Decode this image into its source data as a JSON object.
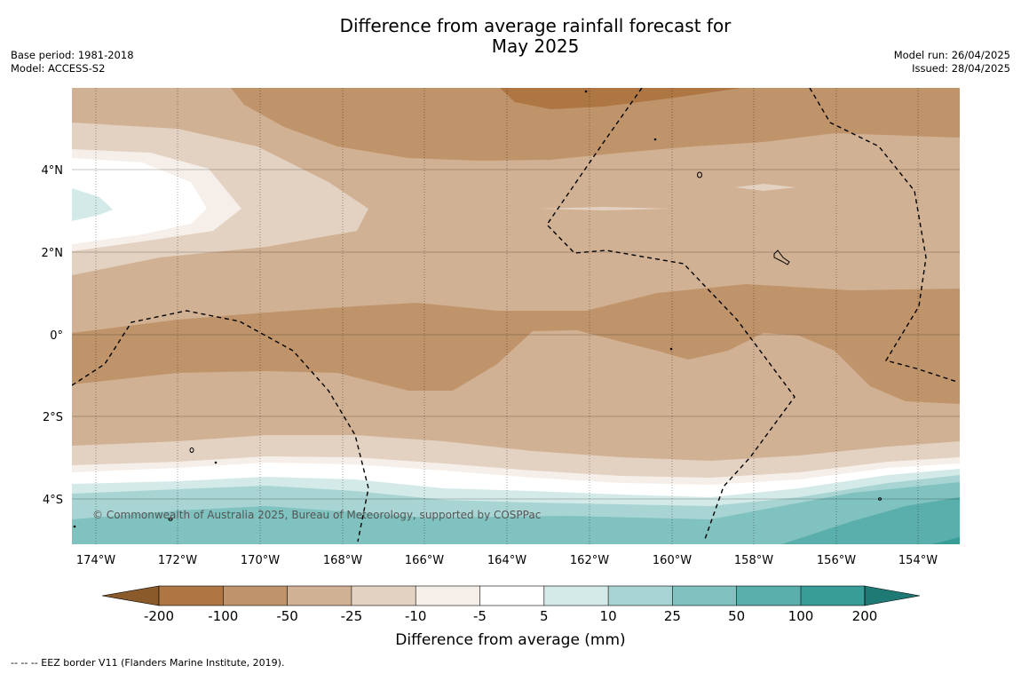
{
  "title": {
    "line1": "Difference from average rainfall forecast for",
    "line2": "May 2025"
  },
  "meta_left": {
    "base_period": "Base period: 1981-2018",
    "model": "Model: ACCESS-S2"
  },
  "meta_right": {
    "model_run": "Model run: 26/04/2025",
    "issued": "Issued: 28/04/2025"
  },
  "map": {
    "lon_labels": [
      "174°W",
      "172°W",
      "170°W",
      "168°W",
      "166°W",
      "164°W",
      "162°W",
      "160°W",
      "158°W",
      "156°W",
      "154°W"
    ],
    "lat_labels": [
      "4°N",
      "2°N",
      "0°",
      "2°S",
      "4°S"
    ],
    "copyright": "© Commonwealth of Australia 2025, Bureau of Meteorology, supported by COSPPac"
  },
  "colorbar": {
    "title": "Difference from average (mm)",
    "ticks": [
      "-200",
      "-100",
      "-50",
      "-25",
      "-10",
      "-5",
      "5",
      "10",
      "25",
      "50",
      "100",
      "200"
    ],
    "colors": {
      "lt_minus200": "#8b5a2b",
      "minus200_minus100": "#ae7642",
      "minus100_minus50": "#c0946b",
      "minus50_minus25": "#d1b193",
      "minus25_minus10": "#e3d1c2",
      "minus10_minus5": "#f6efe9",
      "minus5_5": "#ffffff",
      "5_10": "#d4eae8",
      "10_25": "#a8d5d3",
      "25_50": "#80c2bf",
      "50_100": "#5aaeab",
      "100_200": "#389c97",
      "gt_200": "#1f7a76"
    }
  },
  "legend_note": "--  --  -- EEZ border V11 (Flanders Marine Institute, 2019)."
}
